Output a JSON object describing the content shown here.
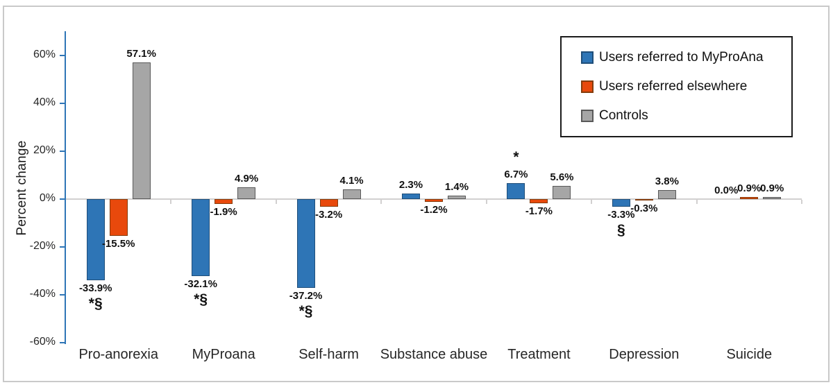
{
  "chart_data": {
    "type": "bar",
    "title": "",
    "xlabel": "",
    "ylabel": "Percent change",
    "ylim": [
      -60,
      70
    ],
    "grid": false,
    "legend_position": "top-right",
    "y_tick_labels": [
      "60%",
      "40%",
      "20%",
      "0%",
      "-20%",
      "-40%",
      "-60%"
    ],
    "y_tick_values": [
      60,
      40,
      20,
      0,
      -20,
      -40,
      -60
    ],
    "categories": [
      "Pro-anorexia",
      "MyProana",
      "Self-harm",
      "Substance abuse",
      "Treatment",
      "Depression",
      "Suicide"
    ],
    "series": [
      {
        "name": "Users referred to MyProAna",
        "color": "#2e75b6",
        "border_color": "#1f4e79",
        "values": [
          -33.9,
          -32.1,
          -37.2,
          2.3,
          6.7,
          -3.3,
          0.0
        ],
        "labels": [
          "-33.9%",
          "-32.1%",
          "-37.2%",
          "2.3%",
          "6.7%",
          "-3.3%",
          "0.0%"
        ],
        "annotations": [
          "*§",
          "*§",
          "*§",
          "",
          "*",
          "§",
          ""
        ]
      },
      {
        "name": "Users referred elsewhere",
        "color": "#e8490c",
        "border_color": "#843c0c",
        "values": [
          -15.5,
          -1.9,
          -3.2,
          -1.2,
          -1.7,
          -0.3,
          0.9
        ],
        "labels": [
          "-15.5%",
          "-1.9%",
          "-3.2%",
          "-1.2%",
          "-1.7%",
          "-0.3%",
          "0.9%"
        ],
        "annotations": [
          "",
          "",
          "",
          "",
          "",
          "",
          ""
        ]
      },
      {
        "name": "Controls",
        "color": "#a6a6a6",
        "border_color": "#595959",
        "values": [
          57.1,
          4.9,
          4.1,
          1.4,
          5.6,
          3.8,
          0.9
        ],
        "labels": [
          "57.1%",
          "4.9%",
          "4.1%",
          "1.4%",
          "5.6%",
          "3.8%",
          "0.9%"
        ],
        "annotations": [
          "",
          "",
          "",
          "",
          "",
          "",
          ""
        ]
      }
    ]
  }
}
